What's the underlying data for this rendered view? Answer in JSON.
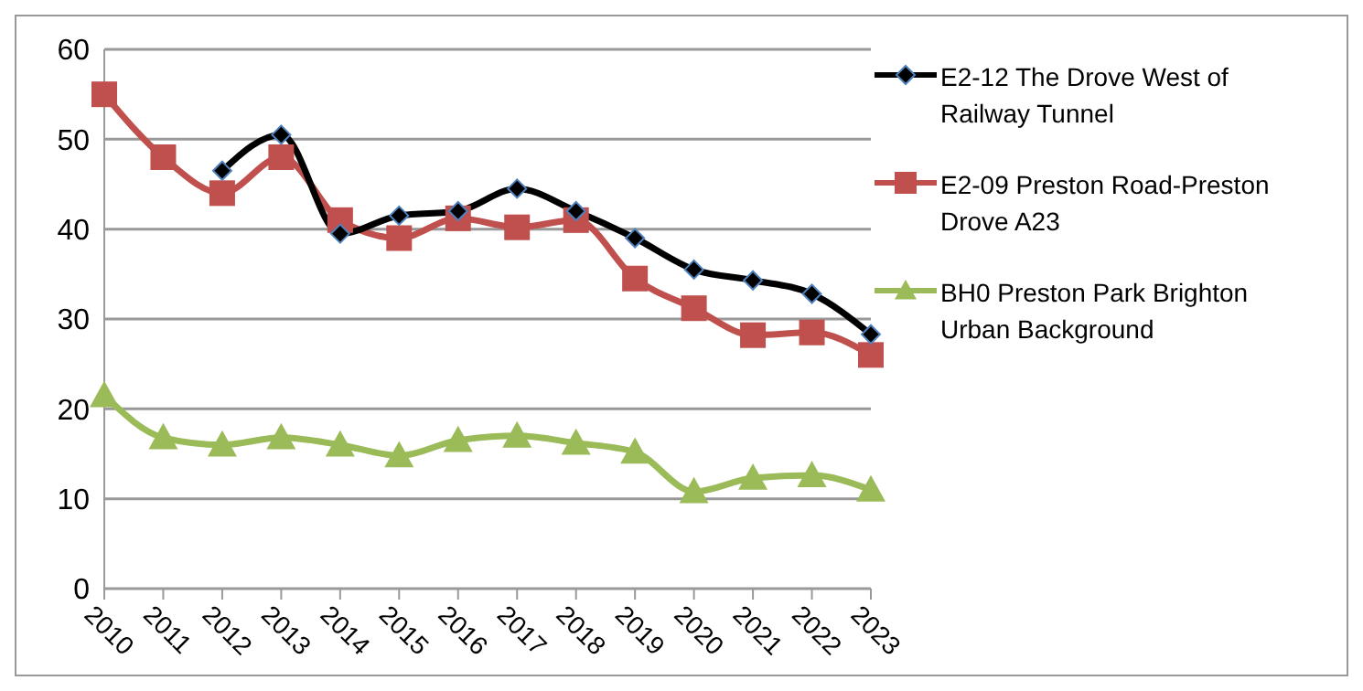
{
  "chart_data": {
    "type": "line",
    "categories": [
      "2010",
      "2011",
      "2012",
      "2013",
      "2014",
      "2015",
      "2016",
      "2017",
      "2018",
      "2019",
      "2020",
      "2021",
      "2022",
      "2023"
    ],
    "series": [
      {
        "name": "E2-12 The Drove West of Railway Tunnel",
        "color": "#000000",
        "marker": "diamond",
        "values": [
          null,
          null,
          46.5,
          50.5,
          39.5,
          41.5,
          42,
          44.5,
          42,
          39,
          35.5,
          34.3,
          32.8,
          28.3
        ]
      },
      {
        "name": "E2-09 Preston Road-Preston Drove A23",
        "color": "#c0504d",
        "marker": "square",
        "values": [
          55,
          48,
          44,
          48,
          41,
          39,
          41.2,
          40.2,
          41,
          34.5,
          31.2,
          28.2,
          28.5,
          26
        ]
      },
      {
        "name": "BH0 Preston Park Brighton Urban Background",
        "color": "#9bbb59",
        "marker": "triangle",
        "values": [
          21.5,
          16.8,
          16,
          16.8,
          16,
          14.8,
          16.5,
          17,
          16.2,
          15.2,
          10.8,
          12.3,
          12.6,
          11
        ]
      }
    ],
    "ylim": [
      0,
      60
    ],
    "yticks": [
      0,
      10,
      20,
      30,
      40,
      50,
      60
    ],
    "grid": "y",
    "legend": "right"
  }
}
